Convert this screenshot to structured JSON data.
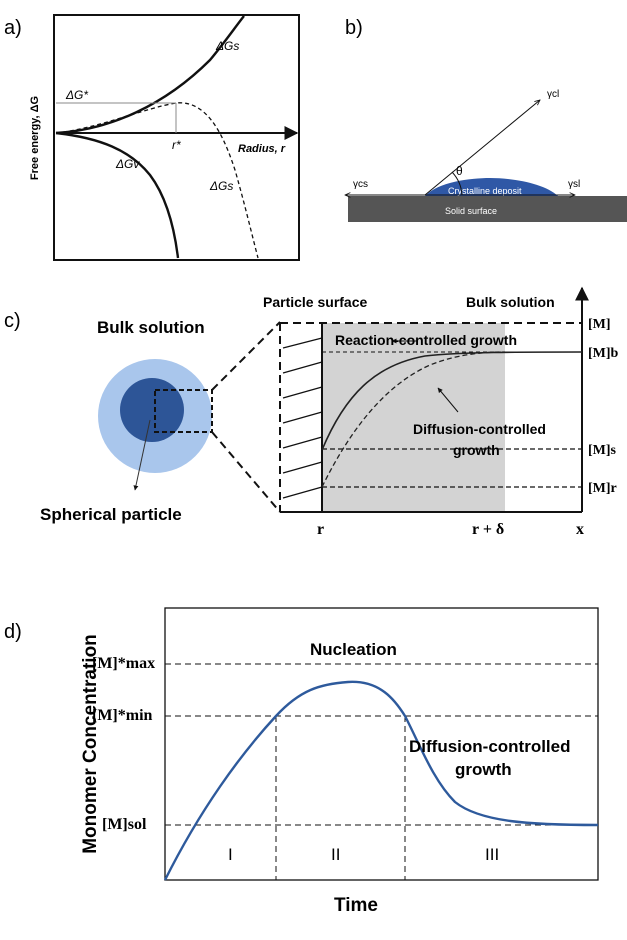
{
  "panel_a": {
    "label": "a)",
    "y_axis_label": "Free energy, ΔG",
    "x_axis_label": "Radius, r",
    "dg_star": "ΔG*",
    "r_star": "r*",
    "dgs_upper": "ΔGs",
    "dgs_lower": "ΔGs",
    "dgv": "ΔGv"
  },
  "panel_b": {
    "label": "b)",
    "gamma_cl": "γcl",
    "gamma_cs": "γcs",
    "gamma_sl": "γsl",
    "theta": "θ",
    "deposit": "Crystalline deposit",
    "surface": "Solid surface"
  },
  "panel_c": {
    "label": "c)",
    "bulk_solution_left": "Bulk solution",
    "spherical_particle": "Spherical particle",
    "particle_surface": "Particle surface",
    "bulk_solution_right": "Bulk solution",
    "reaction_growth": "Reaction-controlled growth",
    "diffusion_growth_1": "Diffusion-controlled",
    "diffusion_growth_2": "growth",
    "m": "[M]",
    "m_b": "[M]b",
    "m_s": "[M]s",
    "m_r": "[M]r",
    "x_r": "r",
    "x_r_delta": "r + δ",
    "x_x": "x"
  },
  "panel_d": {
    "label": "d)",
    "y_axis_label": "Monomer Concentration",
    "x_axis_label": "Time",
    "m_max": "[M]*max",
    "m_min": "[M]*min",
    "m_sol": "[M]sol",
    "nucleation": "Nucleation",
    "diffusion_growth_1": "Diffusion-controlled",
    "diffusion_growth_2": "growth",
    "stage_1": "I",
    "stage_2": "II",
    "stage_3": "III",
    "curve_color": "#2e5a9c"
  },
  "colors": {
    "light_blue": "#a9c6ec",
    "dark_blue": "#2d5597",
    "deposit_blue": "#2f58a6",
    "solid_surface": "#555555",
    "shaded_region": "#d3d3d3"
  }
}
